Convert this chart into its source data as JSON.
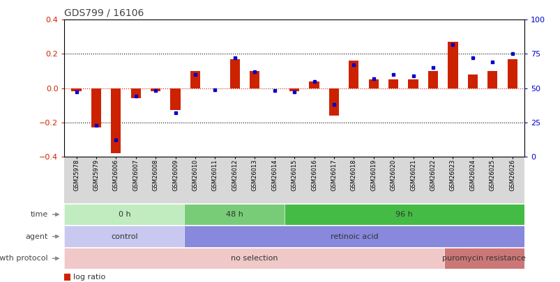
{
  "title": "GDS799 / 16106",
  "samples": [
    "GSM25978",
    "GSM25979",
    "GSM26006",
    "GSM26007",
    "GSM26008",
    "GSM26009",
    "GSM26010",
    "GSM26011",
    "GSM26012",
    "GSM26013",
    "GSM26014",
    "GSM26015",
    "GSM26016",
    "GSM26017",
    "GSM26018",
    "GSM26019",
    "GSM26020",
    "GSM26021",
    "GSM26022",
    "GSM26023",
    "GSM26024",
    "GSM26025",
    "GSM26026"
  ],
  "log_ratio": [
    -0.02,
    -0.23,
    -0.38,
    -0.06,
    -0.02,
    -0.13,
    0.1,
    0.0,
    0.17,
    0.1,
    0.0,
    -0.02,
    0.04,
    -0.16,
    0.16,
    0.05,
    0.05,
    0.05,
    0.1,
    0.27,
    0.08,
    0.1,
    0.17
  ],
  "percentile": [
    47,
    23,
    12,
    44,
    48,
    32,
    60,
    49,
    72,
    62,
    48,
    47,
    55,
    38,
    67,
    57,
    60,
    59,
    65,
    82,
    72,
    69,
    75
  ],
  "bar_color": "#cc2200",
  "dot_color": "#0000cc",
  "ylim_left": [
    -0.4,
    0.4
  ],
  "ylim_right": [
    0,
    100
  ],
  "yticks_left": [
    -0.4,
    -0.2,
    0.0,
    0.2,
    0.4
  ],
  "yticks_right": [
    0,
    25,
    50,
    75,
    100
  ],
  "time_groups": [
    {
      "label": "0 h",
      "start": 0,
      "end": 5,
      "color": "#c0ecc0"
    },
    {
      "label": "48 h",
      "start": 6,
      "end": 10,
      "color": "#78cc78"
    },
    {
      "label": "96 h",
      "start": 11,
      "end": 22,
      "color": "#44bb44"
    }
  ],
  "agent_groups": [
    {
      "label": "control",
      "start": 0,
      "end": 5,
      "color": "#c8c8f0"
    },
    {
      "label": "retinoic acid",
      "start": 6,
      "end": 22,
      "color": "#8888dd"
    }
  ],
  "growth_groups": [
    {
      "label": "no selection",
      "start": 0,
      "end": 18,
      "color": "#f0c8c8"
    },
    {
      "label": "puromycin resistance",
      "start": 19,
      "end": 22,
      "color": "#cc7777"
    }
  ],
  "row_labels": [
    "time",
    "agent",
    "growth protocol"
  ],
  "background_color": "#ffffff",
  "title_color": "#444444",
  "axis_color_left": "#cc2200",
  "axis_color_right": "#0000cc",
  "xtick_bg": "#d8d8d8"
}
